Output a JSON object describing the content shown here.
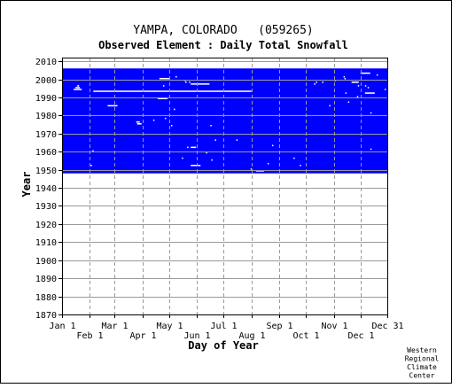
{
  "chart_data": {
    "type": "heatmap",
    "title": "YAMPA, COLORADO   (059265)",
    "subtitle": "Observed Element : Daily Total Snowfall",
    "xlabel": "Day of Year",
    "ylabel": "Year",
    "x_ticks_row1": [
      "Jan 1",
      "Mar 1",
      "May 1",
      "Jul 1",
      "Sep 1",
      "Nov 1",
      "Dec 31"
    ],
    "x_ticks_row2": [
      "Feb 1",
      "Apr 1",
      "Jun 1",
      "Aug 1",
      "Oct 1",
      "Dec 1"
    ],
    "x_tick_days_row1": [
      1,
      60,
      121,
      182,
      244,
      305,
      365
    ],
    "x_tick_days_row2": [
      32,
      91,
      152,
      213,
      274,
      335
    ],
    "y_ticks": [
      "1870",
      "1880",
      "1890",
      "1900",
      "1910",
      "1920",
      "1930",
      "1940",
      "1950",
      "1960",
      "1970",
      "1980",
      "1990",
      "2000",
      "2010"
    ],
    "xlim": [
      1,
      365
    ],
    "ylim": [
      1870,
      2012
    ],
    "grid": true,
    "data_color": "#0000ff",
    "coverage": {
      "start_year": 1948,
      "end_year": 2005
    },
    "missing_segments": [
      {
        "year": 1993,
        "start_day": 36,
        "end_day": 212
      },
      {
        "year": 1994,
        "start_day": 14,
        "end_day": 22
      },
      {
        "year": 1995,
        "start_day": 16,
        "end_day": 20
      },
      {
        "year": 1996,
        "start_day": 18,
        "end_day": 19
      },
      {
        "year": 1985,
        "start_day": 52,
        "end_day": 62
      },
      {
        "year": 1989,
        "start_day": 108,
        "end_day": 118
      },
      {
        "year": 1997,
        "start_day": 145,
        "end_day": 165
      },
      {
        "year": 1952,
        "start_day": 145,
        "end_day": 155
      },
      {
        "year": 1949,
        "start_day": 218,
        "end_day": 226
      },
      {
        "year": 2000,
        "start_day": 110,
        "end_day": 120
      },
      {
        "year": 2003,
        "start_day": 335,
        "end_day": 345
      },
      {
        "year": 1992,
        "start_day": 340,
        "end_day": 350
      },
      {
        "year": 1998,
        "start_day": 325,
        "end_day": 332
      },
      {
        "year": 1962,
        "start_day": 145,
        "end_day": 150
      },
      {
        "year": 1975,
        "start_day": 85,
        "end_day": 89
      },
      {
        "year": 1976,
        "start_day": 84,
        "end_day": 87
      }
    ],
    "missing_days": [
      [
        1960,
        35
      ],
      [
        1952,
        33
      ],
      [
        1956,
        135
      ],
      [
        1959,
        162
      ],
      [
        1962,
        141
      ],
      [
        1966,
        172
      ],
      [
        1955,
        168
      ],
      [
        1950,
        212
      ],
      [
        1974,
        123
      ],
      [
        1974,
        167
      ],
      [
        1978,
        116
      ],
      [
        1977,
        103
      ],
      [
        1985,
        300
      ],
      [
        1981,
        346
      ],
      [
        1998,
        143
      ],
      [
        1998,
        139
      ],
      [
        1996,
        114
      ],
      [
        1999,
        138
      ],
      [
        2001,
        128
      ],
      [
        2001,
        316
      ],
      [
        2000,
        317
      ],
      [
        1996,
        332
      ],
      [
        1996,
        340
      ],
      [
        1998,
        285
      ],
      [
        1998,
        292
      ],
      [
        1999,
        306
      ],
      [
        1992,
        318
      ],
      [
        1990,
        331
      ],
      [
        1987,
        321
      ],
      [
        1953,
        231
      ],
      [
        1963,
        236
      ],
      [
        1956,
        260
      ],
      [
        1952,
        267
      ],
      [
        1961,
        346
      ],
      [
        1966,
        196
      ],
      [
        1983,
        126
      ],
      [
        1995,
        343
      ],
      [
        1994,
        362
      ],
      [
        2002,
        353
      ],
      [
        1997,
        283
      ]
    ],
    "credit": [
      "Western",
      "Regional",
      "Climate",
      "Center"
    ]
  }
}
